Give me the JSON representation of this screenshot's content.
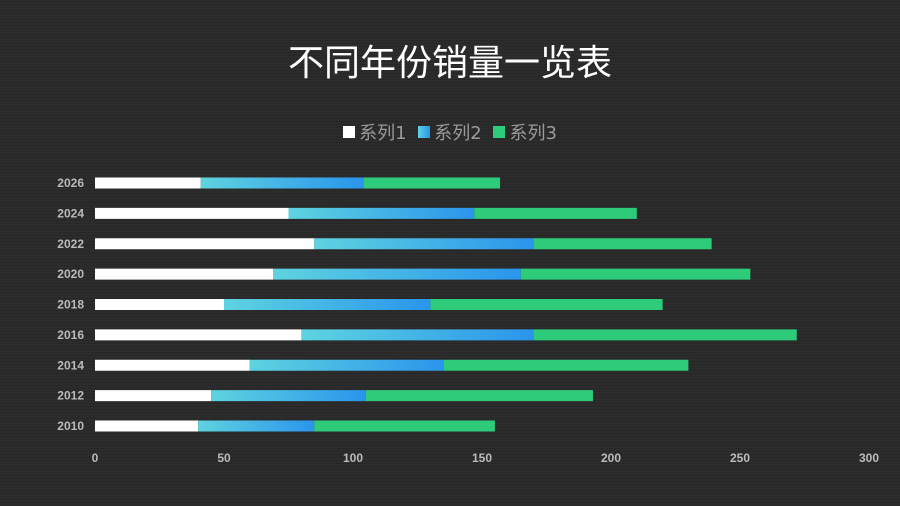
{
  "chart_data": {
    "type": "bar",
    "orientation": "horizontal",
    "stacked": true,
    "title": "不同年份销量一览表",
    "categories": [
      "2010",
      "2012",
      "2014",
      "2016",
      "2018",
      "2020",
      "2022",
      "2024",
      "2026"
    ],
    "series": [
      {
        "name": "系列1",
        "color": "#ffffff",
        "values": [
          40,
          45,
          60,
          80,
          50,
          69,
          85,
          75,
          41
        ]
      },
      {
        "name": "系列2",
        "color": "#3aa8e8",
        "values": [
          45,
          60,
          75,
          90,
          80,
          96,
          85,
          72,
          63
        ]
      },
      {
        "name": "系列3",
        "color": "#2ecc7a",
        "values": [
          70,
          88,
          95,
          102,
          90,
          89,
          69,
          63,
          53
        ]
      }
    ],
    "xlim": [
      0,
      300
    ],
    "xticks": [
      "0",
      "50",
      "100",
      "150",
      "200",
      "250",
      "300"
    ],
    "grid": false,
    "legend": "top"
  }
}
